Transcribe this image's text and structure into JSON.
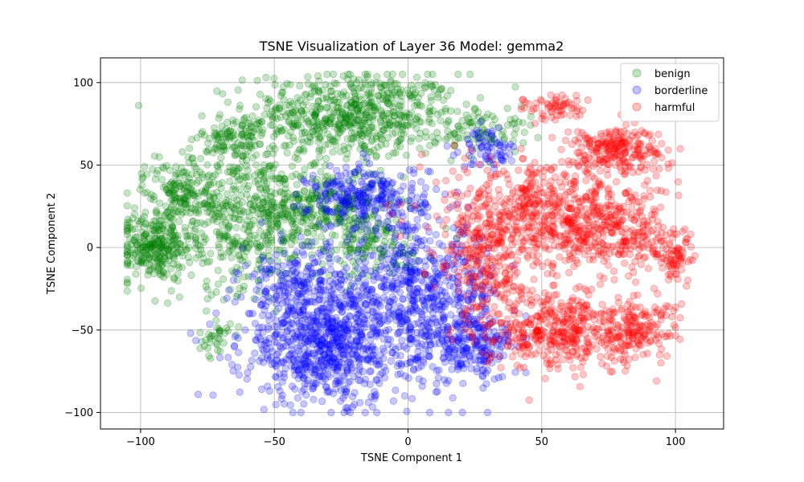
{
  "chart_data": {
    "type": "scatter",
    "title": "TSNE Visualization of Layer 36 Model: gemma2",
    "xlabel": "TSNE Component 1",
    "ylabel": "TSNE Component 2",
    "xlim": [
      -115,
      118
    ],
    "ylim": [
      -110,
      115
    ],
    "xticks": [
      -100,
      -50,
      0,
      50,
      100
    ],
    "yticks": [
      -100,
      -50,
      0,
      50,
      100
    ],
    "grid": true,
    "legend_position": "top-right",
    "series": [
      {
        "name": "benign",
        "color": "#008000",
        "clusters": [
          {
            "cx": -20,
            "cy": 80,
            "sx": 20,
            "sy": 13,
            "n": 650
          },
          {
            "cx": -95,
            "cy": 0,
            "sx": 7,
            "sy": 10,
            "n": 260
          },
          {
            "cx": -62,
            "cy": 20,
            "sx": 16,
            "sy": 22,
            "n": 520
          },
          {
            "cx": -30,
            "cy": 25,
            "sx": 12,
            "sy": 12,
            "n": 260
          },
          {
            "cx": -85,
            "cy": 35,
            "sx": 7,
            "sy": 8,
            "n": 120
          },
          {
            "cx": -65,
            "cy": 65,
            "sx": 6,
            "sy": 8,
            "n": 90
          },
          {
            "cx": -72,
            "cy": -55,
            "sx": 3,
            "sy": 6,
            "n": 35
          },
          {
            "cx": 30,
            "cy": 72,
            "sx": 8,
            "sy": 7,
            "n": 70
          },
          {
            "cx": -15,
            "cy": 0,
            "sx": 12,
            "sy": 10,
            "n": 130
          }
        ]
      },
      {
        "name": "borderline",
        "color": "#0000ff",
        "clusters": [
          {
            "cx": -30,
            "cy": -60,
            "sx": 16,
            "sy": 17,
            "n": 720
          },
          {
            "cx": 5,
            "cy": -30,
            "sx": 15,
            "sy": 22,
            "n": 620
          },
          {
            "cx": -15,
            "cy": 30,
            "sx": 11,
            "sy": 10,
            "n": 270
          },
          {
            "cx": -40,
            "cy": -25,
            "sx": 12,
            "sy": 12,
            "n": 230
          },
          {
            "cx": 30,
            "cy": 60,
            "sx": 5,
            "sy": 6,
            "n": 70
          },
          {
            "cx": 25,
            "cy": -60,
            "sx": 8,
            "sy": 10,
            "n": 180
          }
        ]
      },
      {
        "name": "harmful",
        "color": "#ff0000",
        "clusters": [
          {
            "cx": 50,
            "cy": 20,
            "sx": 18,
            "sy": 18,
            "n": 650
          },
          {
            "cx": 55,
            "cy": -50,
            "sx": 14,
            "sy": 12,
            "n": 420
          },
          {
            "cx": 78,
            "cy": 60,
            "sx": 9,
            "sy": 7,
            "n": 210
          },
          {
            "cx": 85,
            "cy": -50,
            "sx": 8,
            "sy": 9,
            "n": 160
          },
          {
            "cx": 100,
            "cy": -5,
            "sx": 4,
            "sy": 8,
            "n": 80
          },
          {
            "cx": 55,
            "cy": 85,
            "sx": 6,
            "sy": 4,
            "n": 60
          },
          {
            "cx": 80,
            "cy": 10,
            "sx": 9,
            "sy": 14,
            "n": 200
          },
          {
            "cx": 30,
            "cy": -10,
            "sx": 8,
            "sy": 16,
            "n": 170
          }
        ]
      }
    ]
  }
}
